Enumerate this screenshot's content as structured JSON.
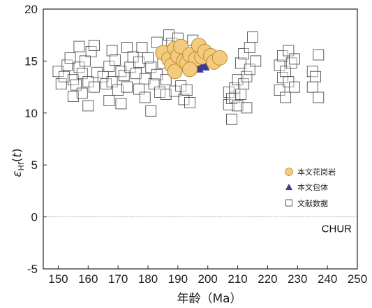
{
  "chart_data": {
    "type": "scatter",
    "title": "",
    "xlabel": "年龄（Ma）",
    "ylabel": "εHf(t)",
    "xlim": [
      145,
      250
    ],
    "ylim": [
      -5,
      20
    ],
    "xticks": [
      "150",
      "160",
      "170",
      "180",
      "190",
      "200",
      "210",
      "220",
      "230",
      "240",
      "250"
    ],
    "yticks": [
      "-5",
      "0",
      "5",
      "10",
      "15",
      "20"
    ],
    "grid": false,
    "legend_position": "right-middle",
    "reference_line": {
      "y": 0,
      "label": "CHUR"
    },
    "legend": {
      "granite": "本文花岗岩",
      "enclave": "本文包体",
      "literature": "文献数据"
    },
    "colors": {
      "granite_fill": "#f3cb7e",
      "granite_stroke": "#c08a2a",
      "enclave_fill": "#3c3a9a"
    },
    "series": [
      {
        "key": "granite",
        "marker": "circle",
        "points": [
          [
            185,
            15.8
          ],
          [
            187,
            15.2
          ],
          [
            188,
            14.6
          ],
          [
            189,
            16.2
          ],
          [
            189,
            14.0
          ],
          [
            190,
            15.5
          ],
          [
            191,
            16.4
          ],
          [
            192,
            15.0
          ],
          [
            193,
            14.8
          ],
          [
            194,
            15.6
          ],
          [
            196,
            15.2
          ],
          [
            197,
            16.5
          ],
          [
            198,
            15.4
          ],
          [
            199,
            15.9
          ],
          [
            201,
            15.5
          ],
          [
            202,
            14.9
          ],
          [
            204,
            15.3
          ],
          [
            194,
            14.2
          ]
        ]
      },
      {
        "key": "enclave",
        "marker": "triangle",
        "points": [
          [
            195,
            14.7
          ],
          [
            196,
            14.4
          ],
          [
            197,
            14.3
          ],
          [
            198,
            14.6
          ],
          [
            199,
            14.5
          ]
        ]
      },
      {
        "key": "literature",
        "marker": "square",
        "points": [
          [
            150,
            14.0
          ],
          [
            151,
            12.8
          ],
          [
            152,
            13.5
          ],
          [
            153,
            14.6
          ],
          [
            154,
            15.3
          ],
          [
            155,
            13.2
          ],
          [
            155,
            11.6
          ],
          [
            156,
            12.7
          ],
          [
            157,
            14.4
          ],
          [
            157,
            16.4
          ],
          [
            158,
            13.8
          ],
          [
            158,
            11.9
          ],
          [
            159,
            15.0
          ],
          [
            160,
            13.0
          ],
          [
            160,
            10.7
          ],
          [
            161,
            15.9
          ],
          [
            162,
            12.5
          ],
          [
            162,
            16.5
          ],
          [
            163,
            13.9
          ],
          [
            165,
            13.5
          ],
          [
            166,
            12.8
          ],
          [
            167,
            14.5
          ],
          [
            167,
            11.2
          ],
          [
            168,
            16.0
          ],
          [
            168,
            13.0
          ],
          [
            169,
            15.1
          ],
          [
            170,
            12.2
          ],
          [
            171,
            14.0
          ],
          [
            171,
            10.9
          ],
          [
            172,
            13.6
          ],
          [
            173,
            12.5
          ],
          [
            173,
            16.3
          ],
          [
            174,
            14.4
          ],
          [
            175,
            15.4
          ],
          [
            176,
            13.8
          ],
          [
            177,
            12.3
          ],
          [
            177,
            14.9
          ],
          [
            178,
            16.3
          ],
          [
            179,
            11.5
          ],
          [
            179,
            13.3
          ],
          [
            180,
            15.3
          ],
          [
            181,
            14.4
          ],
          [
            181,
            10.2
          ],
          [
            182,
            12.8
          ],
          [
            183,
            13.7
          ],
          [
            183,
            16.8
          ],
          [
            184,
            12.0
          ],
          [
            185,
            14.8
          ],
          [
            186,
            11.8
          ],
          [
            186,
            13.2
          ],
          [
            187,
            17.5
          ],
          [
            188,
            16.7
          ],
          [
            189,
            12.1
          ],
          [
            190,
            17.2
          ],
          [
            191,
            12.6
          ],
          [
            192,
            11.3
          ],
          [
            193,
            12.2
          ],
          [
            194,
            11.0
          ],
          [
            195,
            17.0
          ],
          [
            207,
            10.8
          ],
          [
            207,
            12.0
          ],
          [
            208,
            11.4
          ],
          [
            208,
            9.4
          ],
          [
            209,
            11.5
          ],
          [
            209,
            12.4
          ],
          [
            210,
            10.7
          ],
          [
            210,
            13.2
          ],
          [
            211,
            14.8
          ],
          [
            211,
            11.8
          ],
          [
            212,
            15.7
          ],
          [
            212,
            12.8
          ],
          [
            213,
            13.5
          ],
          [
            213,
            10.5
          ],
          [
            214,
            16.3
          ],
          [
            214,
            14.2
          ],
          [
            215,
            17.3
          ],
          [
            216,
            15.0
          ],
          [
            224,
            12.2
          ],
          [
            224,
            14.6
          ],
          [
            225,
            13.4
          ],
          [
            225,
            15.5
          ],
          [
            226,
            11.5
          ],
          [
            226,
            14.0
          ],
          [
            227,
            16.0
          ],
          [
            227,
            13.0
          ],
          [
            228,
            14.8
          ],
          [
            229,
            15.2
          ],
          [
            229,
            12.5
          ],
          [
            235,
            12.5
          ],
          [
            235,
            14.0
          ],
          [
            236,
            13.5
          ],
          [
            237,
            15.6
          ],
          [
            237,
            11.5
          ]
        ]
      }
    ]
  }
}
